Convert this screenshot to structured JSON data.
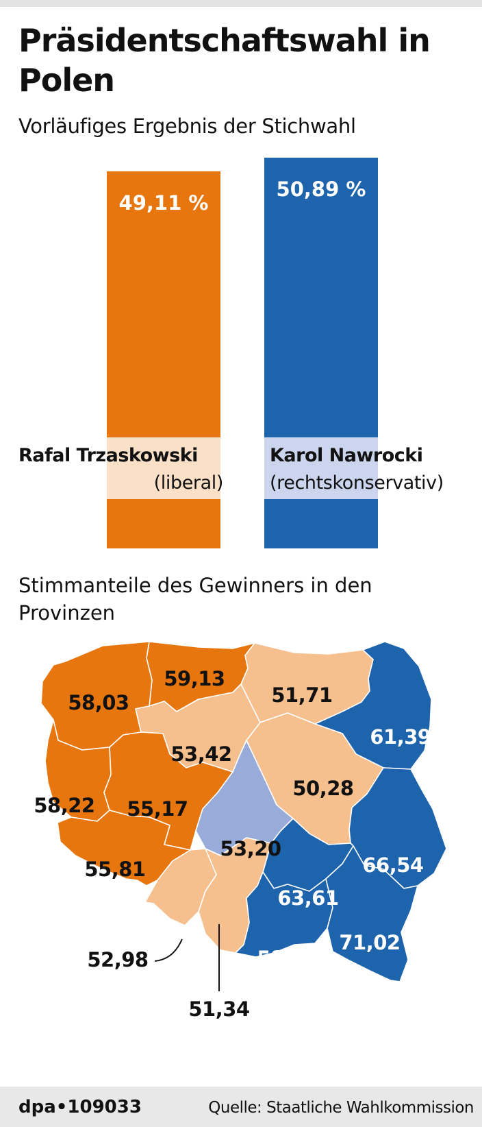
{
  "header": {
    "title": "Präsidentschaftswahl in Polen",
    "subtitle": "Vorläufiges Ergebnis der Stichwahl"
  },
  "colors": {
    "liberal": "#e8760f",
    "liberal_light": "#f6bf8e",
    "conservative": "#1e64ad",
    "conservative_light": "#99acd9",
    "label_band_liberal": "#fbe0c8",
    "label_band_conservative": "#cbd6ee"
  },
  "chart_data": [
    {
      "type": "bar",
      "title": "Vorläufiges Ergebnis der Stichwahl",
      "categories": [
        "Rafal Trzaskowski",
        "Karol Nawrocki"
      ],
      "values": [
        49.11,
        50.89
      ],
      "value_labels": [
        "49,11 %",
        "50,89 %"
      ],
      "parties": [
        "(liberal)",
        "(rechtskonservativ)"
      ],
      "colors": [
        "#e8760f",
        "#1e64ad"
      ]
    },
    {
      "type": "map",
      "title": "Stimmanteile des Gewinners in den Provinzen",
      "regions": [
        {
          "value": 59.13,
          "label": "59,13",
          "winner": "Rafal Trzaskowski",
          "shade": "strong"
        },
        {
          "value": 58.03,
          "label": "58,03",
          "winner": "Rafal Trzaskowski",
          "shade": "strong"
        },
        {
          "value": 51.71,
          "label": "51,71",
          "winner": "Rafal Trzaskowski",
          "shade": "light"
        },
        {
          "value": 61.39,
          "label": "61,39",
          "winner": "Karol Nawrocki",
          "shade": "strong"
        },
        {
          "value": 53.42,
          "label": "53,42",
          "winner": "Rafal Trzaskowski",
          "shade": "light"
        },
        {
          "value": 58.22,
          "label": "58,22",
          "winner": "Rafal Trzaskowski",
          "shade": "strong"
        },
        {
          "value": 55.17,
          "label": "55,17",
          "winner": "Rafal Trzaskowski",
          "shade": "strong"
        },
        {
          "value": 50.28,
          "label": "50,28",
          "winner": "Rafal Trzaskowski",
          "shade": "light"
        },
        {
          "value": 53.2,
          "label": "53,20",
          "winner": "Karol Nawrocki",
          "shade": "light"
        },
        {
          "value": 55.81,
          "label": "55,81",
          "winner": "Rafal Trzaskowski",
          "shade": "strong"
        },
        {
          "value": 66.54,
          "label": "66,54",
          "winner": "Karol Nawrocki",
          "shade": "strong"
        },
        {
          "value": 63.61,
          "label": "63,61",
          "winner": "Karol Nawrocki",
          "shade": "strong"
        },
        {
          "value": 52.98,
          "label": "52,98",
          "winner": "Rafal Trzaskowski",
          "shade": "light"
        },
        {
          "value": 51.34,
          "label": "51,34",
          "winner": "Rafal Trzaskowski",
          "shade": "light"
        },
        {
          "value": 58.87,
          "label": "58,87",
          "winner": "Karol Nawrocki",
          "shade": "strong"
        },
        {
          "value": 71.02,
          "label": "71,02",
          "winner": "Karol Nawrocki",
          "shade": "strong"
        }
      ]
    }
  ],
  "map": {
    "title": "Stimmanteile des Gewinners in den Provinzen"
  },
  "footer": {
    "credit": "dpa•109033",
    "source": "Quelle: Staatliche Wahlkommission"
  }
}
